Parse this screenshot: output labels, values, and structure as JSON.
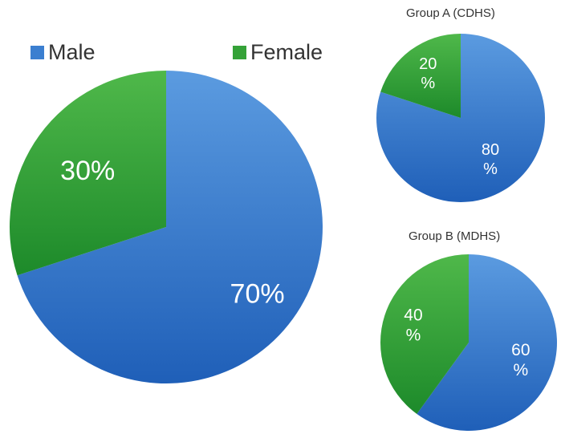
{
  "legend": [
    {
      "label": "Male",
      "color": "#3b7fd0"
    },
    {
      "label": "Female",
      "color": "#35a238"
    }
  ],
  "chart_data": [
    {
      "type": "pie",
      "title": "",
      "categories": [
        "Male",
        "Female"
      ],
      "values": [
        70,
        30
      ],
      "labels": [
        "70%",
        "30%"
      ],
      "colors": [
        "#3b7fd0",
        "#35a238"
      ]
    },
    {
      "type": "pie",
      "title": "Group A (CDHS)",
      "categories": [
        "Male",
        "Female"
      ],
      "values": [
        80,
        20
      ],
      "labels": [
        "80 %",
        "20 %"
      ],
      "colors": [
        "#3b7fd0",
        "#35a238"
      ]
    },
    {
      "type": "pie",
      "title": "Group B (MDHS)",
      "categories": [
        "Male",
        "Female"
      ],
      "values": [
        60,
        40
      ],
      "labels": [
        "60 %",
        "40 %"
      ],
      "colors": [
        "#3b7fd0",
        "#35a238"
      ]
    }
  ]
}
